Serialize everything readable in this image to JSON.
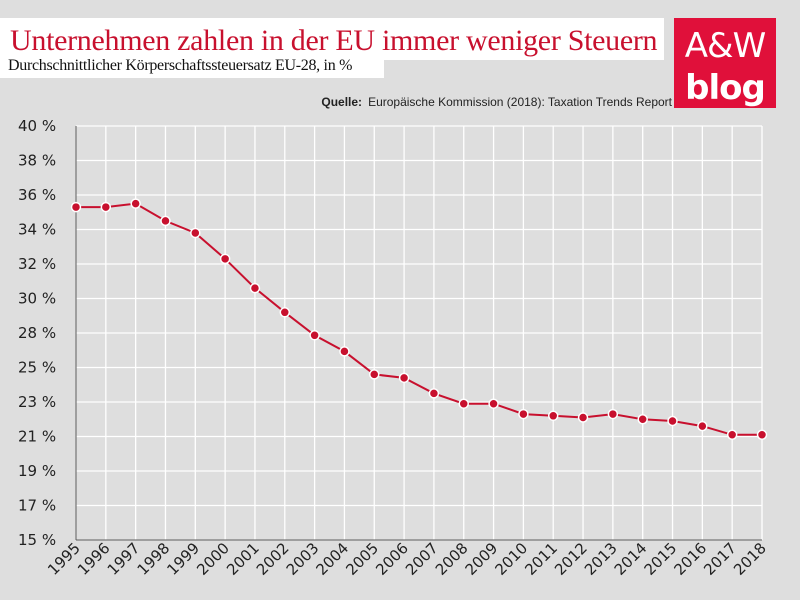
{
  "header": {
    "title": "Unternehmen zahlen in der EU immer weniger Steuern",
    "subtitle": "Durchschnittlicher Körperschaftssteuersatz EU-28, in %",
    "source_label": "Quelle:",
    "source_text": "Europäische Kommission (2018): Taxation Trends Report"
  },
  "logo": {
    "line1": "A&W",
    "line2": "blog"
  },
  "colors": {
    "accent": "#c8102e",
    "line": "#c8102e",
    "background": "#dedede",
    "grid": "#ffffff"
  },
  "chart_data": {
    "type": "line",
    "title": "Unternehmen zahlen in der EU immer weniger Steuern",
    "xlabel": "",
    "ylabel": "",
    "ylim": [
      15,
      40
    ],
    "yticks": [
      15,
      17,
      19,
      21,
      23,
      25,
      28,
      30,
      32,
      34,
      36,
      38,
      40
    ],
    "ytick_labels": [
      "15 %",
      "17 %",
      "19 %",
      "21 %",
      "23 %",
      "25 %",
      "28 %",
      "30 %",
      "32 %",
      "34 %",
      "36 %",
      "38 %",
      "40 %"
    ],
    "categories": [
      "1995",
      "1996",
      "1997",
      "1998",
      "1999",
      "2000",
      "2001",
      "2002",
      "2003",
      "2004",
      "2005",
      "2006",
      "2007",
      "2008",
      "2009",
      "2010",
      "2011",
      "2012",
      "2013",
      "2014",
      "2015",
      "2016",
      "2017",
      "2018"
    ],
    "series": [
      {
        "name": "Durchschnittlicher Körperschaftssteuersatz EU-28",
        "values": [
          35.3,
          35.3,
          35.5,
          34.5,
          33.8,
          32.3,
          30.6,
          29.2,
          27.8,
          26.4,
          24.6,
          24.4,
          23.5,
          22.9,
          22.9,
          22.3,
          22.2,
          22.1,
          22.3,
          22.0,
          21.9,
          21.6,
          21.1,
          21.1
        ]
      }
    ],
    "grid": true,
    "legend": "none"
  }
}
